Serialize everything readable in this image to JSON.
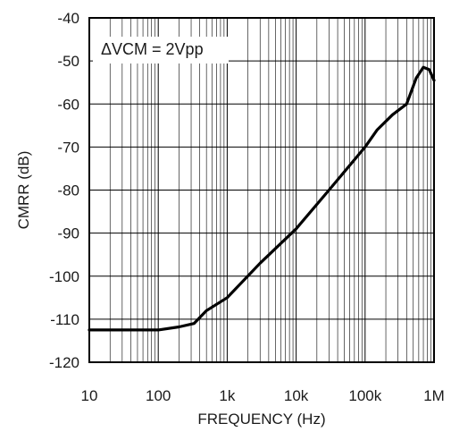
{
  "chart_data": {
    "type": "line",
    "xlabel": "FREQUENCY (Hz)",
    "ylabel": "CMRR (dB)",
    "xscale": "log",
    "xlim": [
      10,
      1000000
    ],
    "ylim": [
      -120,
      -40
    ],
    "grid": true,
    "x_ticks": [
      10,
      100,
      1000,
      10000,
      100000,
      1000000
    ],
    "x_tick_labels": [
      "10",
      "100",
      "1k",
      "10k",
      "100k",
      "1M"
    ],
    "y_ticks": [
      -40,
      -50,
      -60,
      -70,
      -80,
      -90,
      -100,
      -110,
      -120
    ],
    "y_tick_labels": [
      "-40",
      "-50",
      "-60",
      "-70",
      "-80",
      "-90",
      "-100",
      "-110",
      "-120"
    ],
    "annotation": "ΔVCM = 2Vpp",
    "series": [
      {
        "color": "#000000",
        "x": [
          10,
          30,
          100,
          200,
          330,
          500,
          1000,
          3000,
          10000,
          30000,
          100000,
          150000,
          250000,
          400000,
          550000,
          700000,
          850000,
          1000000
        ],
        "y": [
          -112.5,
          -112.5,
          -112.5,
          -111.8,
          -111,
          -108,
          -105,
          -97,
          -89,
          -80,
          -70,
          -66,
          -62.5,
          -60,
          -54,
          -51.5,
          -52,
          -54.5
        ]
      }
    ]
  }
}
